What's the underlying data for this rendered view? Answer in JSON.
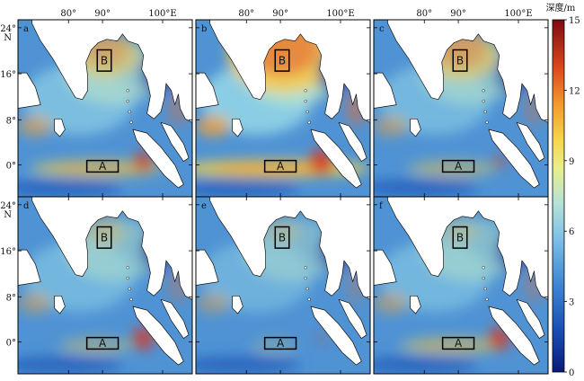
{
  "figure": {
    "panels": [
      {
        "letter": "a",
        "intensity": 1.0,
        "bay_hot": 1.0,
        "eq_hot": 0.9,
        "sum_hot": 1.0
      },
      {
        "letter": "b",
        "intensity": 1.35,
        "bay_hot": 1.6,
        "eq_hot": 1.3,
        "sum_hot": 1.2
      },
      {
        "letter": "c",
        "intensity": 0.85,
        "bay_hot": 1.1,
        "eq_hot": 0.6,
        "sum_hot": 0.7
      },
      {
        "letter": "d",
        "intensity": 0.8,
        "bay_hot": 0.6,
        "eq_hot": 0.5,
        "sum_hot": 1.1
      },
      {
        "letter": "e",
        "intensity": 0.7,
        "bay_hot": 0.5,
        "eq_hot": 0.3,
        "sum_hot": 0.5
      },
      {
        "letter": "f",
        "intensity": 0.8,
        "bay_hot": 0.5,
        "eq_hot": 0.7,
        "sum_hot": 1.1
      }
    ],
    "box_labels": {
      "north": "B",
      "equator": "A"
    },
    "x_ticks": [
      "80°",
      "90°",
      "100°E"
    ],
    "y_ticks": [
      "24°",
      "16°",
      "8°",
      "0°"
    ],
    "y_unit": "N",
    "colorbar": {
      "title": "深度/m",
      "ticks": [
        "0",
        "3",
        "6",
        "9",
        "12",
        "15"
      ],
      "min": 0,
      "max": 15
    }
  }
}
